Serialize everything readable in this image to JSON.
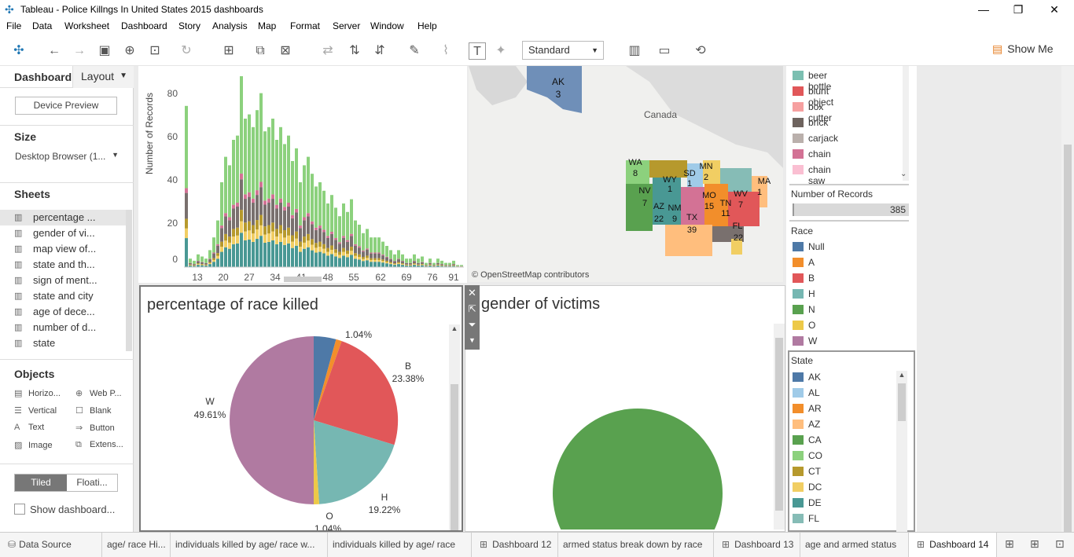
{
  "window": {
    "title": "Tableau - Police Killngs In United States 2015 dashboards",
    "min": "—",
    "max": "❐",
    "close": "✕"
  },
  "menu": [
    "File",
    "Data",
    "Worksheet",
    "Dashboard",
    "Story",
    "Analysis",
    "Map",
    "Format",
    "Server",
    "Window",
    "Help"
  ],
  "toolbar": {
    "fit_select": "Standard",
    "show_me": "Show Me"
  },
  "left": {
    "tab_dashboard": "Dashboard",
    "tab_layout": "Layout",
    "device_preview": "Device Preview",
    "size_header": "Size",
    "size_value": "Desktop Browser (1...",
    "sheets_header": "Sheets",
    "sheets": [
      "percentage ...",
      "gender of vi...",
      "map view of...",
      "state and th...",
      "sign of ment...",
      "state and city",
      "age of dece...",
      "number of d...",
      "state"
    ],
    "objects_header": "Objects",
    "objects": [
      {
        "label": "Horizo...",
        "icon": "horizontal-icon"
      },
      {
        "label": "Web P...",
        "icon": "web-page-icon"
      },
      {
        "label": "Vertical",
        "icon": "vertical-icon"
      },
      {
        "label": "Blank",
        "icon": "blank-icon"
      },
      {
        "label": "Text",
        "icon": "text-icon"
      },
      {
        "label": "Button",
        "icon": "button-icon"
      },
      {
        "label": "Image",
        "icon": "image-icon"
      },
      {
        "label": "Extens...",
        "icon": "extension-icon"
      }
    ],
    "tiled": "Tiled",
    "floating": "Floati...",
    "show_title": "Show dashboard..."
  },
  "bar_chart": {
    "ylabel": "Number of Records",
    "yticks": [
      "0",
      "20",
      "40",
      "60",
      "80"
    ],
    "xticks": [
      "13",
      "20",
      "27",
      "34",
      "41",
      "48",
      "55",
      "62",
      "69",
      "76",
      "91"
    ]
  },
  "map": {
    "canada": "Canada",
    "attribution": "© OpenStreetMap contributors",
    "labels": [
      {
        "s": "AK",
        "n": "3"
      },
      {
        "s": "WA",
        "n": "8"
      },
      {
        "s": "WY",
        "n": "1"
      },
      {
        "s": "SD",
        "n": "1"
      },
      {
        "s": "MN",
        "n": "2"
      },
      {
        "s": "NV",
        "n": "7"
      },
      {
        "s": "AZ",
        "n": "22"
      },
      {
        "s": "NM",
        "n": "9"
      },
      {
        "s": "TX",
        "n": "39"
      },
      {
        "s": "MO",
        "n": "15"
      },
      {
        "s": "TN",
        "n": "11"
      },
      {
        "s": "WV",
        "n": "7"
      },
      {
        "s": "MA",
        "n": "1"
      },
      {
        "s": "FL",
        "n": "22"
      }
    ]
  },
  "pie_chart": {
    "title": "percentage of race killed",
    "labels": [
      {
        "name": "",
        "pct": "1.04%"
      },
      {
        "name": "B",
        "pct": "23.38%"
      },
      {
        "name": "H",
        "pct": "19.22%"
      },
      {
        "name": "O",
        "pct": "1.04%"
      },
      {
        "name": "W",
        "pct": "49.61%"
      }
    ]
  },
  "gender_chart": {
    "title": "gender of victims"
  },
  "legends": {
    "armed": [
      {
        "label": "beer bottle",
        "color": "#7bbfb1"
      },
      {
        "label": "blunt object",
        "color": "#e15759"
      },
      {
        "label": "box cutter",
        "color": "#f6a0a0"
      },
      {
        "label": "brick",
        "color": "#6e635e"
      },
      {
        "label": "carjack",
        "color": "#bab0ac"
      },
      {
        "label": "chain",
        "color": "#d37295"
      },
      {
        "label": "chain saw",
        "color": "#fabfd2"
      }
    ],
    "records_header": "Number of Records",
    "records_value": "385",
    "race_header": "Race",
    "race": [
      {
        "label": "Null",
        "color": "#4e79a7"
      },
      {
        "label": "A",
        "color": "#f28e2b"
      },
      {
        "label": "B",
        "color": "#e15759"
      },
      {
        "label": "H",
        "color": "#76b7b2"
      },
      {
        "label": "N",
        "color": "#59a14f"
      },
      {
        "label": "O",
        "color": "#edc948"
      },
      {
        "label": "W",
        "color": "#b07aa1"
      }
    ],
    "state_header": "State",
    "state": [
      {
        "label": "AK",
        "color": "#4e79a7"
      },
      {
        "label": "AL",
        "color": "#a0cbe8"
      },
      {
        "label": "AR",
        "color": "#f28e2b"
      },
      {
        "label": "AZ",
        "color": "#ffbe7d"
      },
      {
        "label": "CA",
        "color": "#59a14f"
      },
      {
        "label": "CO",
        "color": "#8cd17d"
      },
      {
        "label": "CT",
        "color": "#b6992d"
      },
      {
        "label": "DC",
        "color": "#f1ce63"
      },
      {
        "label": "DE",
        "color": "#499894"
      },
      {
        "label": "FL",
        "color": "#86bcb6"
      }
    ]
  },
  "bottom_tabs": [
    {
      "label": "Data Source",
      "icon": "data-source-icon"
    },
    {
      "label": "age/ race Hi...",
      "icon": ""
    },
    {
      "label": "individuals killed by age/ race w...",
      "icon": ""
    },
    {
      "label": "individuals killed by age/ race",
      "icon": ""
    },
    {
      "label": "Dashboard 12",
      "icon": "dashboard-icon"
    },
    {
      "label": "armed status break down by race",
      "icon": ""
    },
    {
      "label": "Dashboard 13",
      "icon": "dashboard-icon"
    },
    {
      "label": "age and armed status",
      "icon": ""
    },
    {
      "label": "Dashboard 14",
      "icon": "dashboard-icon"
    }
  ]
}
